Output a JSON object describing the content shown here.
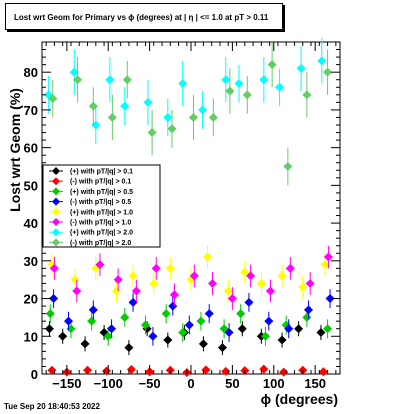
{
  "title": "Lost wrt Geom for Primary vs ϕ (degrees) at |  η | <= 1.0 at pT > 0.11",
  "datestamp": "Tue Sep 20 18:40:53 2022",
  "chart_data": {
    "type": "scatter",
    "title": "Lost wrt Geom for Primary vs ϕ (degrees) at |  η | <= 1.0 at pT > 0.11",
    "xlabel": "ϕ (degrees)",
    "ylabel": "Lost wrt Geom (%)",
    "xlim": [
      -180,
      180
    ],
    "ylim": [
      0,
      88
    ],
    "xticks": [
      -150,
      -100,
      -50,
      0,
      50,
      100,
      150
    ],
    "xtick_labels": [
      "−150",
      "−100",
      "−50",
      "0",
      "50",
      "100",
      "150"
    ],
    "yticks": [
      0,
      10,
      20,
      30,
      40,
      50,
      60,
      70,
      80
    ],
    "ytick_labels": [
      "0",
      "10",
      "20",
      "30",
      "40",
      "50",
      "60",
      "70",
      "80"
    ],
    "grid": false,
    "legend_position": "middle-left",
    "series": [
      {
        "name": "(+) with pT/|q| > 0.1",
        "color": "#000000",
        "x": [
          -171,
          -155,
          -128,
          -105,
          -75,
          -53,
          -28,
          -8,
          15,
          38,
          62,
          85,
          110,
          130,
          157
        ],
        "y": [
          12,
          10,
          8,
          11,
          7,
          12,
          9,
          11,
          8,
          7,
          12,
          10,
          9,
          12,
          11
        ],
        "err": [
          2,
          2,
          2,
          2,
          2,
          2,
          2,
          2,
          2,
          2,
          2,
          2,
          2,
          2,
          2
        ]
      },
      {
        "name": "(-) with pT/|q| > 0.1",
        "color": "#ff0000",
        "x": [
          -168,
          -150,
          -125,
          -102,
          -72,
          -50,
          -25,
          -5,
          18,
          42,
          65,
          88,
          112,
          135,
          160
        ],
        "y": [
          1,
          0.5,
          1,
          0.8,
          1.2,
          0.6,
          1,
          0.4,
          1.1,
          0.7,
          0.9,
          1.3,
          0.5,
          1,
          0.6
        ],
        "err": [
          0.8,
          0.8,
          0.8,
          0.8,
          0.8,
          0.8,
          0.8,
          0.8,
          0.8,
          0.8,
          0.8,
          0.8,
          0.8,
          0.8,
          0.8
        ]
      },
      {
        "name": "(+) with pT/|q| > 0.5",
        "color": "#00cc00",
        "x": [
          -170,
          -145,
          -120,
          -100,
          -80,
          -55,
          -30,
          -10,
          12,
          40,
          60,
          90,
          115,
          140,
          165
        ],
        "y": [
          16,
          12,
          14,
          10,
          15,
          13,
          16,
          11,
          14,
          12,
          16,
          10,
          13,
          15,
          12
        ],
        "err": [
          2.5,
          2.5,
          2.5,
          2.5,
          2.5,
          2.5,
          2.5,
          2.5,
          2.5,
          2.5,
          2.5,
          2.5,
          2.5,
          2.5,
          2.5
        ]
      },
      {
        "name": "(-) with pT/|q| > 0.5",
        "color": "#0000ff",
        "x": [
          -166,
          -148,
          -118,
          -96,
          -70,
          -46,
          -22,
          -2,
          22,
          46,
          70,
          94,
          118,
          142,
          168
        ],
        "y": [
          20,
          14,
          17,
          12,
          19,
          10,
          18,
          13,
          16,
          11,
          19,
          14,
          12,
          17,
          20
        ],
        "err": [
          2.5,
          2.5,
          2.5,
          2.5,
          2.5,
          2.5,
          2.5,
          2.5,
          2.5,
          2.5,
          2.5,
          2.5,
          2.5,
          2.5,
          2.5
        ]
      },
      {
        "name": "(+) with pT/|q| > 1.0",
        "color": "#ffff00",
        "x": [
          -168,
          -140,
          -115,
          -90,
          -70,
          -45,
          -25,
          0,
          20,
          45,
          65,
          85,
          110,
          135,
          162
        ],
        "y": [
          29,
          25,
          28,
          22,
          26,
          24,
          28,
          25,
          31,
          22,
          27,
          24,
          26,
          23,
          29
        ],
        "err": [
          3,
          3,
          3,
          3,
          3,
          3,
          3,
          3,
          3,
          3,
          3,
          3,
          3,
          3,
          3
        ]
      },
      {
        "name": "(-) with pT/|q| > 1.0",
        "color": "#ff00ff",
        "x": [
          -165,
          -138,
          -110,
          -88,
          -66,
          -42,
          -20,
          4,
          26,
          50,
          72,
          96,
          120,
          144,
          166
        ],
        "y": [
          28,
          22,
          29,
          25,
          22,
          28,
          21,
          26,
          24,
          20,
          26,
          22,
          28,
          24,
          31
        ],
        "err": [
          3,
          3,
          3,
          3,
          3,
          3,
          3,
          3,
          3,
          3,
          3,
          3,
          3,
          3,
          3
        ]
      },
      {
        "name": "(+) with pT/|q| > 2.0",
        "color": "#00ffff",
        "x": [
          -172,
          -141,
          -115,
          -98,
          -80,
          -52,
          -28,
          -10,
          14,
          42,
          58,
          88,
          107,
          133,
          158
        ],
        "y": [
          74,
          80,
          66,
          78,
          71,
          72,
          68,
          77,
          70,
          78,
          77,
          78,
          76,
          81,
          83
        ],
        "err": [
          5,
          6,
          5,
          6,
          5,
          6,
          5,
          6,
          5,
          6,
          5,
          6,
          5,
          6,
          6
        ]
      },
      {
        "name": "(-) with pT/|q| > 2.0",
        "color": "#66cc66",
        "x": [
          -167,
          -137,
          -118,
          -95,
          -77,
          -47,
          -23,
          3,
          27,
          47,
          68,
          98,
          117,
          140,
          165
        ],
        "y": [
          73,
          78,
          71,
          68,
          78,
          64,
          65,
          68,
          68,
          75,
          74,
          82,
          55,
          74,
          80
        ],
        "err": [
          5,
          6,
          5,
          6,
          5,
          6,
          5,
          6,
          5,
          6,
          5,
          6,
          5,
          6,
          6
        ]
      }
    ]
  }
}
